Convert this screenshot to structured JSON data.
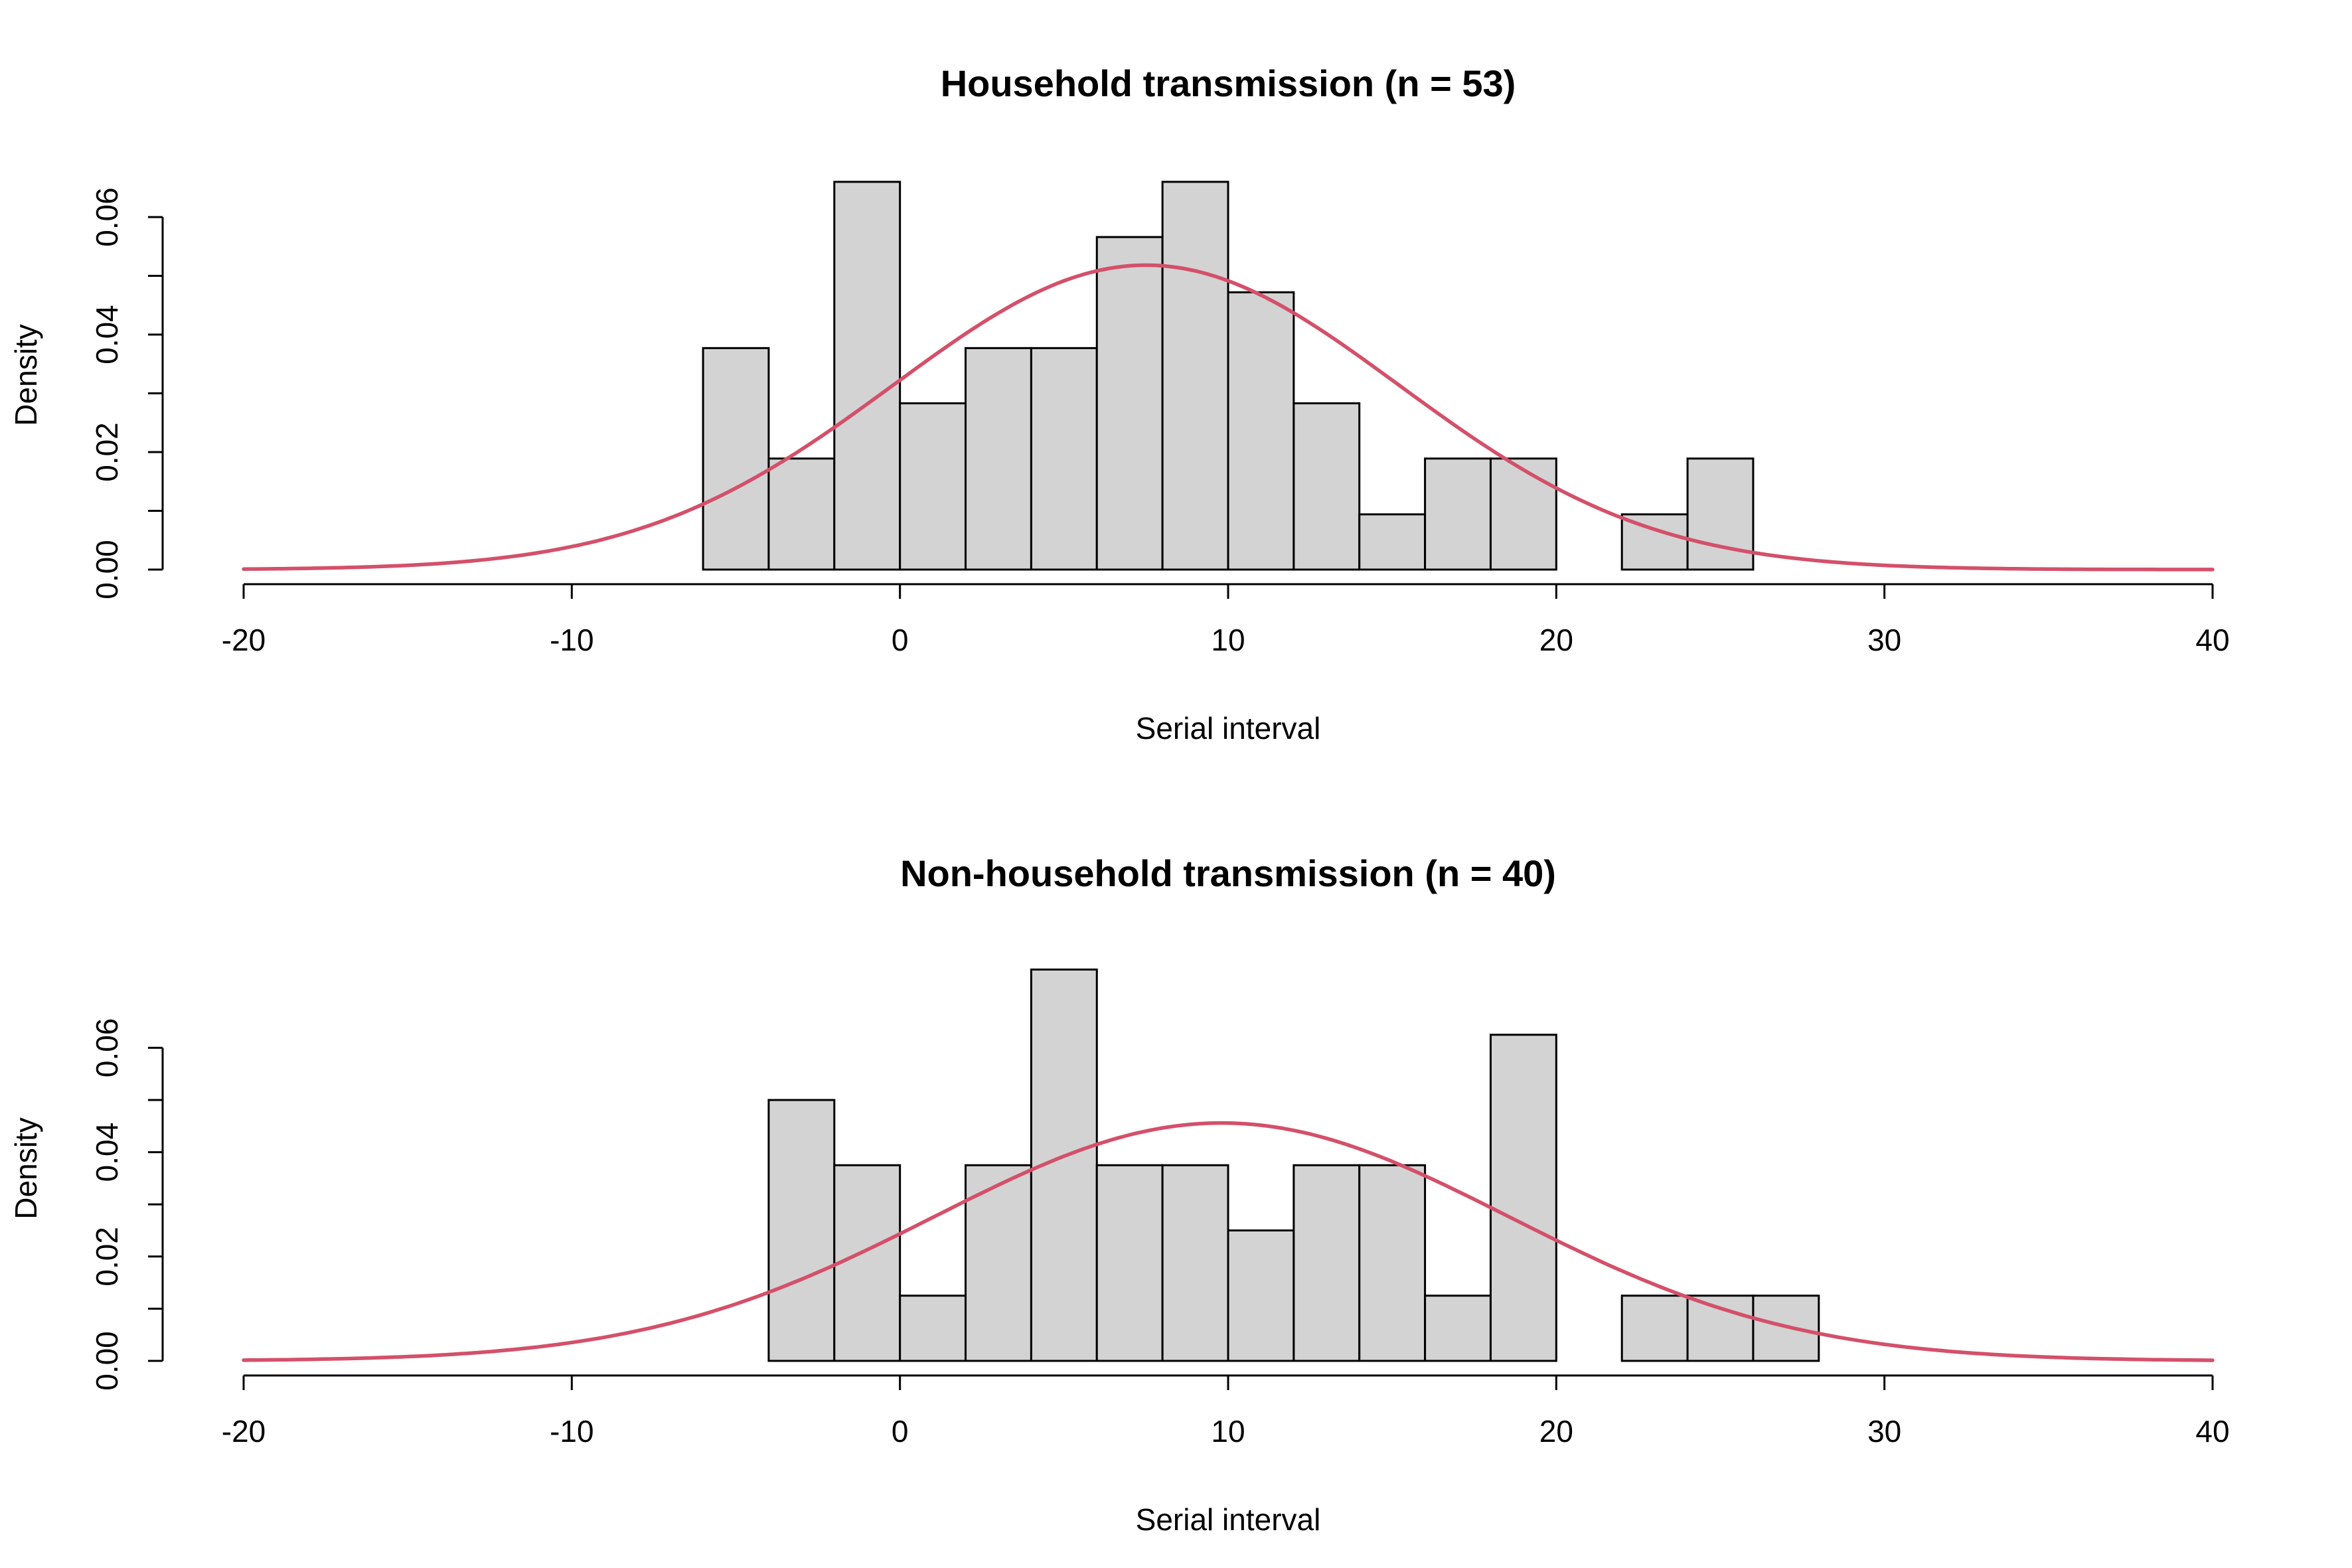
{
  "chart_data": [
    {
      "type": "bar",
      "title": "Household transmission (n = 53)",
      "xlabel": "Serial interval",
      "ylabel": "Density",
      "xlim": [
        -20,
        40
      ],
      "ylim": [
        0,
        0.066
      ],
      "x_ticks": [
        -20,
        -10,
        0,
        10,
        20,
        30,
        40
      ],
      "x_tick_labels": [
        "-20",
        "-10",
        "0",
        "10",
        "20",
        "30",
        "40"
      ],
      "y_ticks": [
        0,
        0.02,
        0.04,
        0.06
      ],
      "y_tick_labels": [
        "0.00",
        "0.02",
        "0.04",
        "0.06"
      ],
      "grid": false,
      "bin_width": 2,
      "bins": [
        {
          "start": -6,
          "end": -4,
          "density": 0.0377
        },
        {
          "start": -4,
          "end": -2,
          "density": 0.0189
        },
        {
          "start": -2,
          "end": 0,
          "density": 0.066
        },
        {
          "start": 0,
          "end": 2,
          "density": 0.0283
        },
        {
          "start": 2,
          "end": 4,
          "density": 0.0377
        },
        {
          "start": 4,
          "end": 6,
          "density": 0.0377
        },
        {
          "start": 6,
          "end": 8,
          "density": 0.0566
        },
        {
          "start": 8,
          "end": 10,
          "density": 0.066
        },
        {
          "start": 10,
          "end": 12,
          "density": 0.0472
        },
        {
          "start": 12,
          "end": 14,
          "density": 0.0283
        },
        {
          "start": 14,
          "end": 16,
          "density": 0.0094
        },
        {
          "start": 16,
          "end": 18,
          "density": 0.0189
        },
        {
          "start": 18,
          "end": 20,
          "density": 0.0189
        },
        {
          "start": 20,
          "end": 22,
          "density": 0
        },
        {
          "start": 22,
          "end": 24,
          "density": 0.0094
        },
        {
          "start": 24,
          "end": 26,
          "density": 0.0189
        }
      ],
      "fitted_curve": {
        "distribution": "normal",
        "mean": 7.5,
        "sd": 7.7
      },
      "bar_color": "#d3d3d3",
      "curve_color": "#d4506a"
    },
    {
      "type": "bar",
      "title": "Non-household transmission (n = 40)",
      "xlabel": "Serial interval",
      "ylabel": "Density",
      "xlim": [
        -20,
        40
      ],
      "ylim": [
        0,
        0.075
      ],
      "x_ticks": [
        -20,
        -10,
        0,
        10,
        20,
        30,
        40
      ],
      "x_tick_labels": [
        "-20",
        "-10",
        "0",
        "10",
        "20",
        "30",
        "40"
      ],
      "y_ticks": [
        0,
        0.02,
        0.04,
        0.06
      ],
      "y_tick_labels": [
        "0.00",
        "0.02",
        "0.04",
        "0.06"
      ],
      "grid": false,
      "bin_width": 2,
      "bins": [
        {
          "start": -4,
          "end": -2,
          "density": 0.05
        },
        {
          "start": -2,
          "end": 0,
          "density": 0.0375
        },
        {
          "start": 0,
          "end": 2,
          "density": 0.0125
        },
        {
          "start": 2,
          "end": 4,
          "density": 0.0375
        },
        {
          "start": 4,
          "end": 6,
          "density": 0.075
        },
        {
          "start": 6,
          "end": 8,
          "density": 0.0375
        },
        {
          "start": 8,
          "end": 10,
          "density": 0.0375
        },
        {
          "start": 10,
          "end": 12,
          "density": 0.025
        },
        {
          "start": 12,
          "end": 14,
          "density": 0.0375
        },
        {
          "start": 14,
          "end": 16,
          "density": 0.0375
        },
        {
          "start": 16,
          "end": 18,
          "density": 0.0125
        },
        {
          "start": 18,
          "end": 20,
          "density": 0.0625
        },
        {
          "start": 20,
          "end": 22,
          "density": 0
        },
        {
          "start": 22,
          "end": 24,
          "density": 0.0125
        },
        {
          "start": 24,
          "end": 26,
          "density": 0.0125
        },
        {
          "start": 26,
          "end": 28,
          "density": 0.0125
        }
      ],
      "fitted_curve": {
        "distribution": "normal",
        "mean": 9.8,
        "sd": 8.75
      },
      "bar_color": "#d3d3d3",
      "curve_color": "#d4506a"
    }
  ]
}
